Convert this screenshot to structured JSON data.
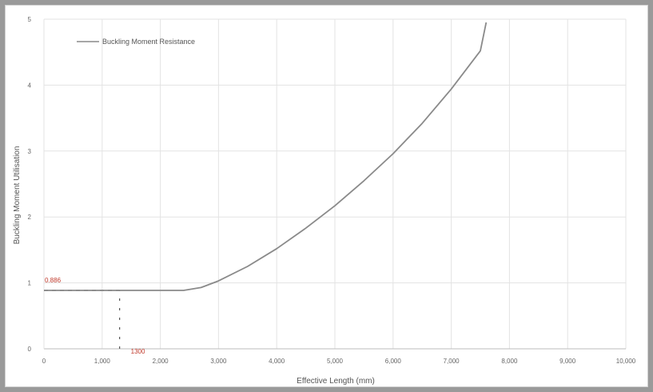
{
  "chart_data": {
    "type": "line",
    "title": "",
    "xlabel": "Effective Length (mm)",
    "ylabel": "Buckling Moment Utilisation",
    "xlim": [
      0,
      10000
    ],
    "ylim": [
      0,
      5
    ],
    "x_ticks": [
      "0",
      "1,000",
      "2,000",
      "3,000",
      "4,000",
      "5,000",
      "6,000",
      "7,000",
      "8,000",
      "9,000",
      "10,000"
    ],
    "y_ticks": [
      "0",
      "1",
      "2",
      "3",
      "4",
      "5"
    ],
    "grid": true,
    "legend_position": "top-left",
    "series": [
      {
        "name": "Buckling Moment Resistance",
        "color": "#8a8a8a",
        "x": [
          0,
          1000,
          2000,
          2400,
          2700,
          3000,
          3500,
          4000,
          4500,
          5000,
          5500,
          6000,
          6500,
          7000,
          7500,
          7600
        ],
        "y": [
          0.886,
          0.886,
          0.886,
          0.886,
          0.93,
          1.03,
          1.25,
          1.52,
          1.83,
          2.17,
          2.55,
          2.96,
          3.42,
          3.94,
          4.52,
          4.95
        ]
      }
    ],
    "annotations": [
      {
        "text": "0.886",
        "x": 0,
        "y": 0.886
      },
      {
        "text": "1300",
        "x": 1300,
        "y": 0
      }
    ],
    "reference_lines": [
      {
        "kind": "horizontal",
        "y": 0.886,
        "x_from": 0,
        "x_to": 1300,
        "style": "dashed"
      },
      {
        "kind": "vertical",
        "x": 1300,
        "y_from": 0,
        "y_to": 0.886,
        "style": "dashed"
      }
    ]
  }
}
